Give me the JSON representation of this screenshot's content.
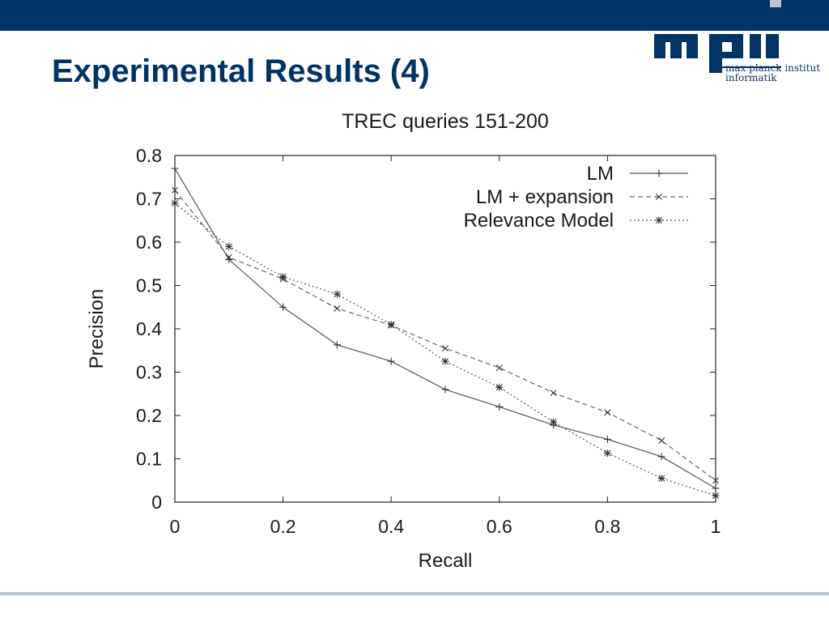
{
  "slide": {
    "title": "Experimental Results (4)",
    "accent_color": "#003366",
    "logo": {
      "line1": "max planck institut",
      "line2": "informatik",
      "color": "#003366"
    }
  },
  "chart_data": {
    "type": "line",
    "title": "TREC queries 151-200",
    "xlabel": "Recall",
    "ylabel": "Precision",
    "xlim": [
      0,
      1
    ],
    "ylim": [
      0,
      0.8
    ],
    "xticks": [
      "0",
      "0.2",
      "0.4",
      "0.6",
      "0.8",
      "1"
    ],
    "yticks": [
      "0",
      "0.1",
      "0.2",
      "0.3",
      "0.4",
      "0.5",
      "0.6",
      "0.7",
      "0.8"
    ],
    "grid": false,
    "legend_position": "top-right",
    "x": [
      0,
      0.1,
      0.2,
      0.3,
      0.4,
      0.5,
      0.6,
      0.7,
      0.8,
      0.9,
      1
    ],
    "series": [
      {
        "name": "LM",
        "style": "solid",
        "marker": "plus",
        "values": [
          0.77,
          0.56,
          0.45,
          0.363,
          0.325,
          0.26,
          0.22,
          0.178,
          0.145,
          0.105,
          0.032
        ]
      },
      {
        "name": "LM + expansion",
        "style": "dashed",
        "marker": "x",
        "values": [
          0.72,
          0.565,
          0.515,
          0.447,
          0.408,
          0.355,
          0.31,
          0.252,
          0.207,
          0.142,
          0.05
        ]
      },
      {
        "name": "Relevance Model",
        "style": "dotted",
        "marker": "star",
        "values": [
          0.69,
          0.59,
          0.52,
          0.48,
          0.41,
          0.325,
          0.265,
          0.185,
          0.113,
          0.055,
          0.015
        ]
      }
    ]
  }
}
